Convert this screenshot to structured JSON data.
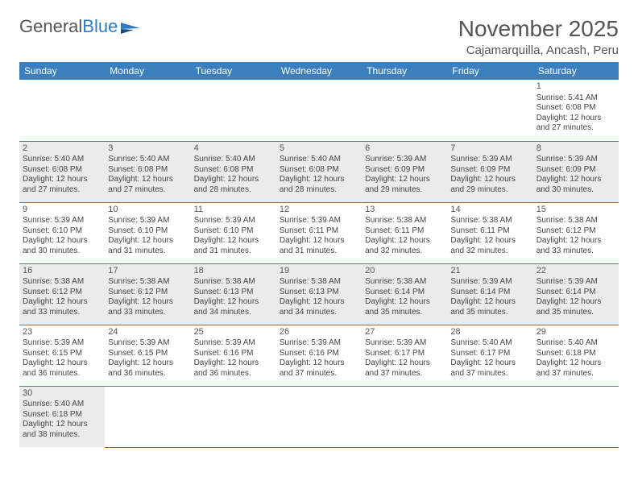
{
  "logo": {
    "text1": "General",
    "text2": "Blue"
  },
  "title": "November 2025",
  "location": "Cajamarquilla, Ancash, Peru",
  "colors": {
    "header_bg": "#3b7fbf",
    "header_text": "#ffffff",
    "alt_row_bg": "#ebebeb",
    "border": "#3b7fbf",
    "text": "#444444",
    "title_color": "#555555"
  },
  "weekdays": [
    "Sunday",
    "Monday",
    "Tuesday",
    "Wednesday",
    "Thursday",
    "Friday",
    "Saturday"
  ],
  "weeks": [
    [
      null,
      null,
      null,
      null,
      null,
      null,
      {
        "n": "1",
        "sr": "5:41 AM",
        "ss": "6:08 PM",
        "dl": "12 hours and 27 minutes."
      }
    ],
    [
      {
        "n": "2",
        "sr": "5:40 AM",
        "ss": "6:08 PM",
        "dl": "12 hours and 27 minutes."
      },
      {
        "n": "3",
        "sr": "5:40 AM",
        "ss": "6:08 PM",
        "dl": "12 hours and 27 minutes."
      },
      {
        "n": "4",
        "sr": "5:40 AM",
        "ss": "6:08 PM",
        "dl": "12 hours and 28 minutes."
      },
      {
        "n": "5",
        "sr": "5:40 AM",
        "ss": "6:08 PM",
        "dl": "12 hours and 28 minutes."
      },
      {
        "n": "6",
        "sr": "5:39 AM",
        "ss": "6:09 PM",
        "dl": "12 hours and 29 minutes."
      },
      {
        "n": "7",
        "sr": "5:39 AM",
        "ss": "6:09 PM",
        "dl": "12 hours and 29 minutes."
      },
      {
        "n": "8",
        "sr": "5:39 AM",
        "ss": "6:09 PM",
        "dl": "12 hours and 30 minutes."
      }
    ],
    [
      {
        "n": "9",
        "sr": "5:39 AM",
        "ss": "6:10 PM",
        "dl": "12 hours and 30 minutes."
      },
      {
        "n": "10",
        "sr": "5:39 AM",
        "ss": "6:10 PM",
        "dl": "12 hours and 31 minutes."
      },
      {
        "n": "11",
        "sr": "5:39 AM",
        "ss": "6:10 PM",
        "dl": "12 hours and 31 minutes."
      },
      {
        "n": "12",
        "sr": "5:39 AM",
        "ss": "6:11 PM",
        "dl": "12 hours and 31 minutes."
      },
      {
        "n": "13",
        "sr": "5:38 AM",
        "ss": "6:11 PM",
        "dl": "12 hours and 32 minutes."
      },
      {
        "n": "14",
        "sr": "5:38 AM",
        "ss": "6:11 PM",
        "dl": "12 hours and 32 minutes."
      },
      {
        "n": "15",
        "sr": "5:38 AM",
        "ss": "6:12 PM",
        "dl": "12 hours and 33 minutes."
      }
    ],
    [
      {
        "n": "16",
        "sr": "5:38 AM",
        "ss": "6:12 PM",
        "dl": "12 hours and 33 minutes."
      },
      {
        "n": "17",
        "sr": "5:38 AM",
        "ss": "6:12 PM",
        "dl": "12 hours and 33 minutes."
      },
      {
        "n": "18",
        "sr": "5:38 AM",
        "ss": "6:13 PM",
        "dl": "12 hours and 34 minutes."
      },
      {
        "n": "19",
        "sr": "5:38 AM",
        "ss": "6:13 PM",
        "dl": "12 hours and 34 minutes."
      },
      {
        "n": "20",
        "sr": "5:38 AM",
        "ss": "6:14 PM",
        "dl": "12 hours and 35 minutes."
      },
      {
        "n": "21",
        "sr": "5:39 AM",
        "ss": "6:14 PM",
        "dl": "12 hours and 35 minutes."
      },
      {
        "n": "22",
        "sr": "5:39 AM",
        "ss": "6:14 PM",
        "dl": "12 hours and 35 minutes."
      }
    ],
    [
      {
        "n": "23",
        "sr": "5:39 AM",
        "ss": "6:15 PM",
        "dl": "12 hours and 36 minutes."
      },
      {
        "n": "24",
        "sr": "5:39 AM",
        "ss": "6:15 PM",
        "dl": "12 hours and 36 minutes."
      },
      {
        "n": "25",
        "sr": "5:39 AM",
        "ss": "6:16 PM",
        "dl": "12 hours and 36 minutes."
      },
      {
        "n": "26",
        "sr": "5:39 AM",
        "ss": "6:16 PM",
        "dl": "12 hours and 37 minutes."
      },
      {
        "n": "27",
        "sr": "5:39 AM",
        "ss": "6:17 PM",
        "dl": "12 hours and 37 minutes."
      },
      {
        "n": "28",
        "sr": "5:40 AM",
        "ss": "6:17 PM",
        "dl": "12 hours and 37 minutes."
      },
      {
        "n": "29",
        "sr": "5:40 AM",
        "ss": "6:18 PM",
        "dl": "12 hours and 37 minutes."
      }
    ],
    [
      {
        "n": "30",
        "sr": "5:40 AM",
        "ss": "6:18 PM",
        "dl": "12 hours and 38 minutes."
      },
      null,
      null,
      null,
      null,
      null,
      null
    ]
  ],
  "labels": {
    "sunrise": "Sunrise: ",
    "sunset": "Sunset: ",
    "daylight": "Daylight: "
  }
}
